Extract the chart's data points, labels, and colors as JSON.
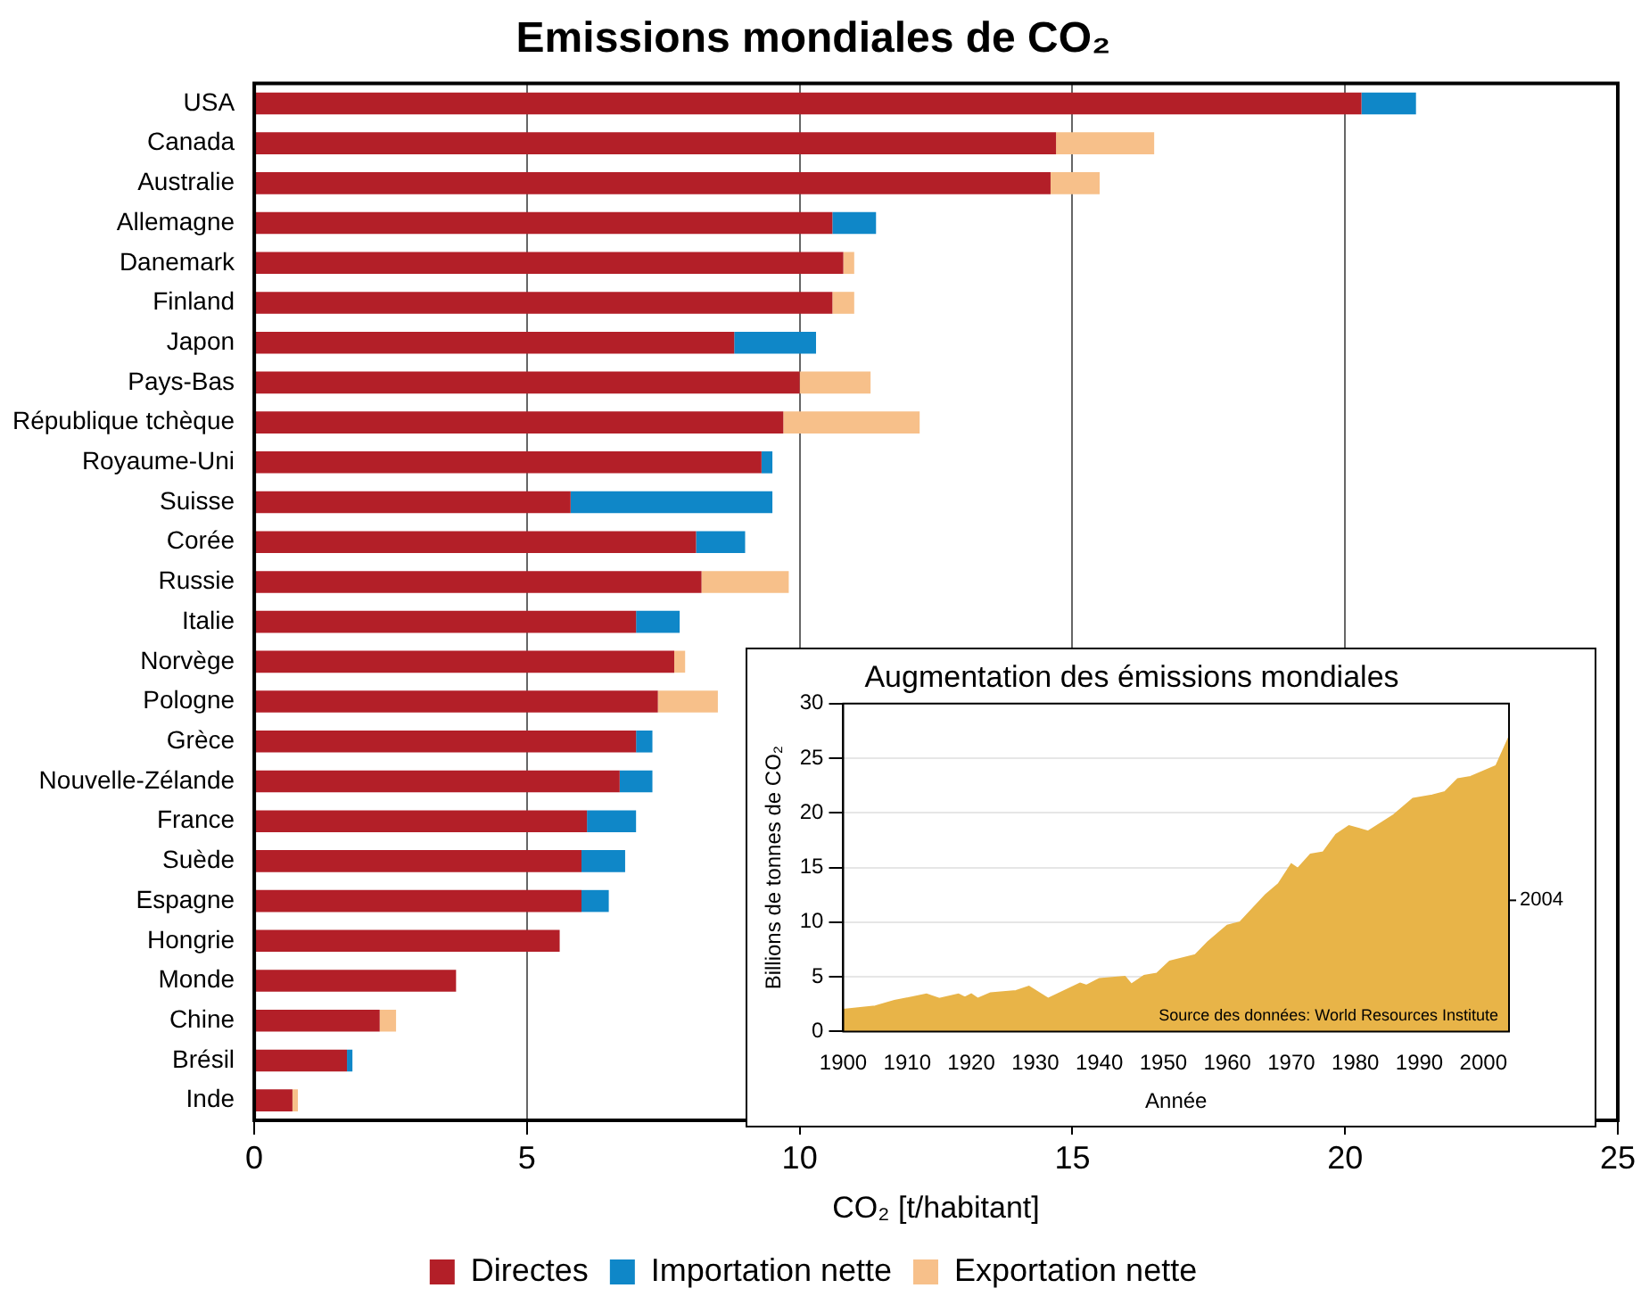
{
  "chart_data": [
    {
      "type": "bar",
      "title": "Emissions mondiales de CO₂",
      "xlabel": "CO₂ [t/habitant]",
      "orientation": "horizontal",
      "stacked": true,
      "grid": "x",
      "legend": "bottom",
      "categories": [
        "USA",
        "Canada",
        "Australie",
        "Allemagne",
        "Danemark",
        "Finland",
        "Japon",
        "Pays-Bas",
        "République tchèque",
        "Royaume-Uni",
        "Suisse",
        "Corée",
        "Russie",
        "Italie",
        "Norvège",
        "Pologne",
        "Grèce",
        "Nouvelle-Zélande",
        "France",
        "Suède",
        "Espagne",
        "Hongrie",
        "Monde",
        "Chine",
        "Brésil",
        "Inde"
      ],
      "xlim": [
        0,
        25
      ],
      "xticks": [
        0,
        5,
        10,
        15,
        20,
        25
      ],
      "series": [
        {
          "name": "Directes",
          "color": "#b31f28",
          "values": [
            20.3,
            14.7,
            14.6,
            10.6,
            10.8,
            10.6,
            8.8,
            10.0,
            9.7,
            9.3,
            5.8,
            8.1,
            8.2,
            7.0,
            7.7,
            7.4,
            7.0,
            6.7,
            6.1,
            6.0,
            6.0,
            5.6,
            3.7,
            2.3,
            1.7,
            0.7
          ]
        },
        {
          "name": "Importation nette",
          "color": "#0f87c8",
          "values": [
            1.0,
            null,
            null,
            0.8,
            null,
            null,
            1.5,
            null,
            null,
            0.2,
            3.7,
            0.9,
            null,
            0.8,
            null,
            null,
            0.3,
            0.6,
            0.9,
            0.8,
            0.5,
            null,
            null,
            null,
            0.1,
            null
          ]
        },
        {
          "name": "Exportation nette",
          "color": "#f7c08a",
          "values": [
            null,
            1.8,
            0.9,
            null,
            0.2,
            0.4,
            null,
            1.3,
            2.5,
            null,
            null,
            null,
            1.6,
            null,
            0.2,
            1.1,
            null,
            null,
            null,
            null,
            null,
            null,
            null,
            0.3,
            null,
            0.1
          ]
        }
      ]
    },
    {
      "type": "area",
      "title": "Augmentation des émissions mondiales",
      "xlabel": "Année",
      "ylabel": "Billions de tonnes de CO₂",
      "grid": "y",
      "annotations": [
        "2004",
        "Source des données: World Resources Institute"
      ],
      "xlim": [
        1900,
        2004
      ],
      "xticks": [
        1900,
        1910,
        1920,
        1930,
        1940,
        1950,
        1960,
        1970,
        1980,
        1990,
        2000
      ],
      "ylim": [
        0,
        30
      ],
      "yticks": [
        0,
        5,
        10,
        15,
        20,
        25,
        30
      ],
      "x": [
        1900,
        1905,
        1908,
        1913,
        1915,
        1918,
        1919,
        1920,
        1921,
        1923,
        1927,
        1929,
        1932,
        1937,
        1938,
        1940,
        1944,
        1945,
        1947,
        1949,
        1951,
        1955,
        1957,
        1960,
        1962,
        1966,
        1968,
        1970,
        1971,
        1973,
        1975,
        1977,
        1979,
        1982,
        1986,
        1989,
        1992,
        1994,
        1996,
        1998,
        2002,
        2004
      ],
      "series": [
        {
          "color": "#e8b448",
          "values": [
            2.0,
            2.3,
            2.8,
            3.4,
            3.0,
            3.4,
            3.1,
            3.4,
            3.0,
            3.5,
            3.7,
            4.1,
            3.0,
            4.4,
            4.2,
            4.8,
            5.0,
            4.3,
            5.1,
            5.3,
            6.4,
            7.0,
            8.2,
            9.7,
            10.0,
            12.5,
            13.5,
            15.3,
            14.9,
            16.2,
            16.4,
            18.0,
            18.8,
            18.3,
            19.8,
            21.3,
            21.6,
            21.9,
            23.1,
            23.3,
            24.3,
            26.9
          ]
        }
      ]
    }
  ]
}
